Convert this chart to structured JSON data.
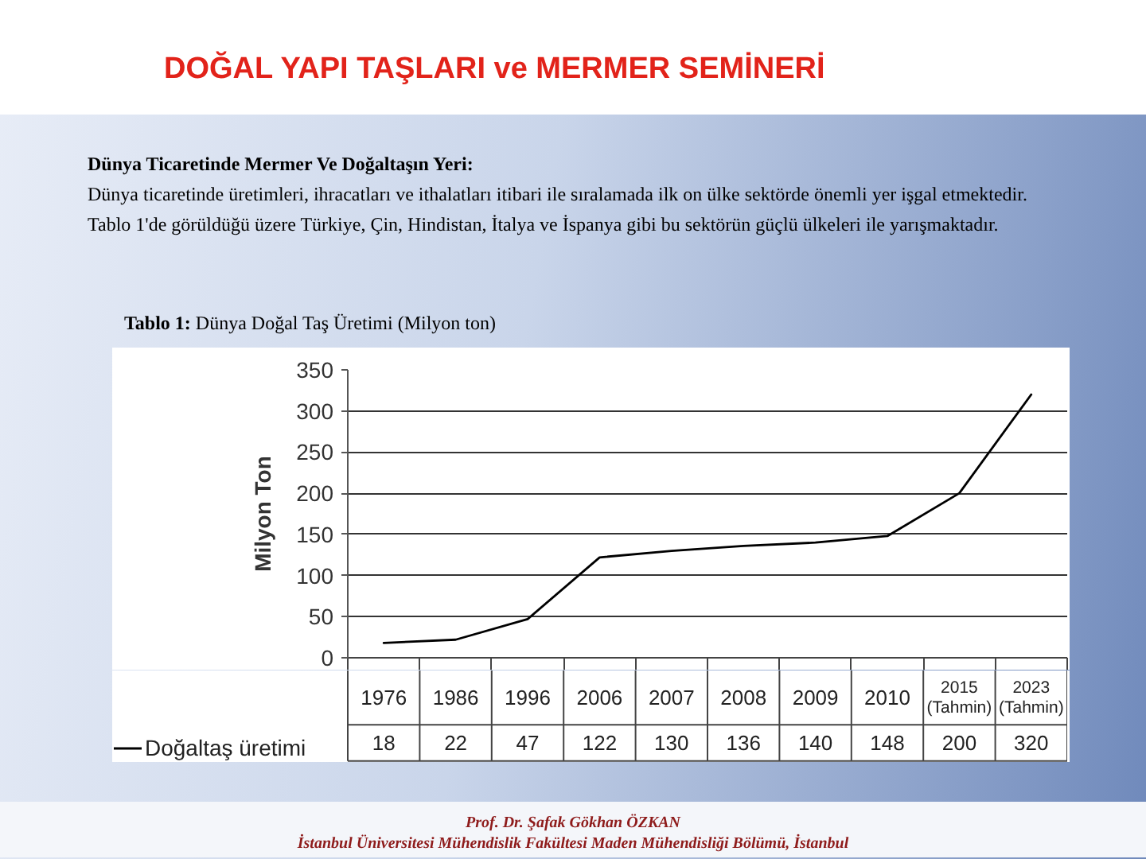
{
  "chart_data": {
    "type": "line",
    "title": "DOĞAL YAPI TAŞLARI ve MERMER SEMİNERİ",
    "subtitle": "Tablo 1: Dünya Doğal Taş Üretimi (Milyon ton)",
    "ylabel": "Milyon Ton",
    "annotations": [
      "Dünya Ticaretinde Mermer Ve Doğaltaşın Yeri:",
      "Dünya ticaretinde üretimleri, ihracatları ve ithalatları itibari ile sıralamada ilk on ülke sektörde önemli yer işgal etmektedir.",
      "Tablo 1'de görüldüğü üzere Türkiye, Çin, Hindistan, İtalya ve İspanya gibi bu sektörün güçlü ülkeleri ile yarışmaktadır.",
      "Prof. Dr. Şafak Gökhan ÖZKAN",
      "İstanbul Üniversitesi Mühendislik Fakültesi Maden Mühendisliği Bölümü, İstanbul"
    ],
    "categories": [
      "1976",
      "1986",
      "1996",
      "2006",
      "2007",
      "2008",
      "2009",
      "2010",
      "2015 (Tahmin)",
      "2023 (Tahmin)"
    ],
    "series": [
      {
        "name": "Doğaltaş üretimi",
        "color": "#000000",
        "values": [
          18,
          22,
          47,
          122,
          130,
          136,
          140,
          148,
          200,
          320
        ]
      }
    ],
    "ylim": [
      0,
      350
    ],
    "yticks": [
      0,
      50,
      100,
      150,
      200,
      250,
      300,
      350
    ],
    "grid": "y",
    "legend": "bottom left",
    "data_labels": true
  }
}
